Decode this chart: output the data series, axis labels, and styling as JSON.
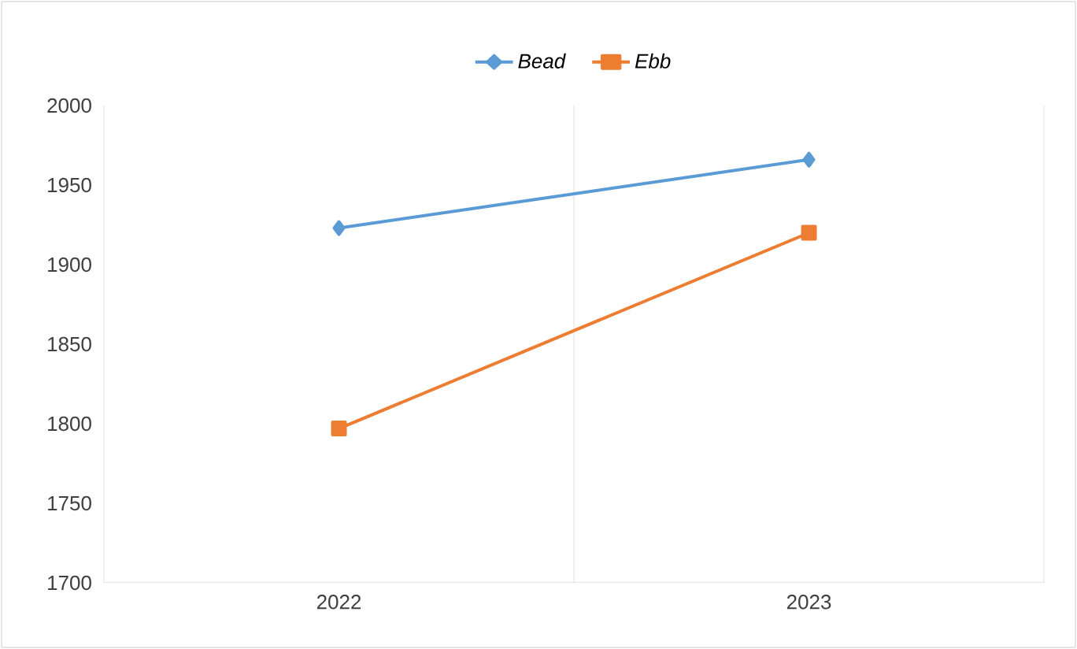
{
  "chart_data": {
    "type": "line",
    "categories": [
      "2022",
      "2023"
    ],
    "series": [
      {
        "name": "Bead",
        "color": "#5b9bd5",
        "marker": "diamond",
        "values": [
          1923,
          1966
        ]
      },
      {
        "name": "Ebb",
        "color": "#ed7d31",
        "marker": "square",
        "values": [
          1797,
          1920
        ]
      }
    ],
    "ylim": [
      1700,
      2000
    ],
    "yticks": [
      1700,
      1750,
      1800,
      1850,
      1900,
      1950,
      2000
    ],
    "grid": "x",
    "legend": "top"
  }
}
